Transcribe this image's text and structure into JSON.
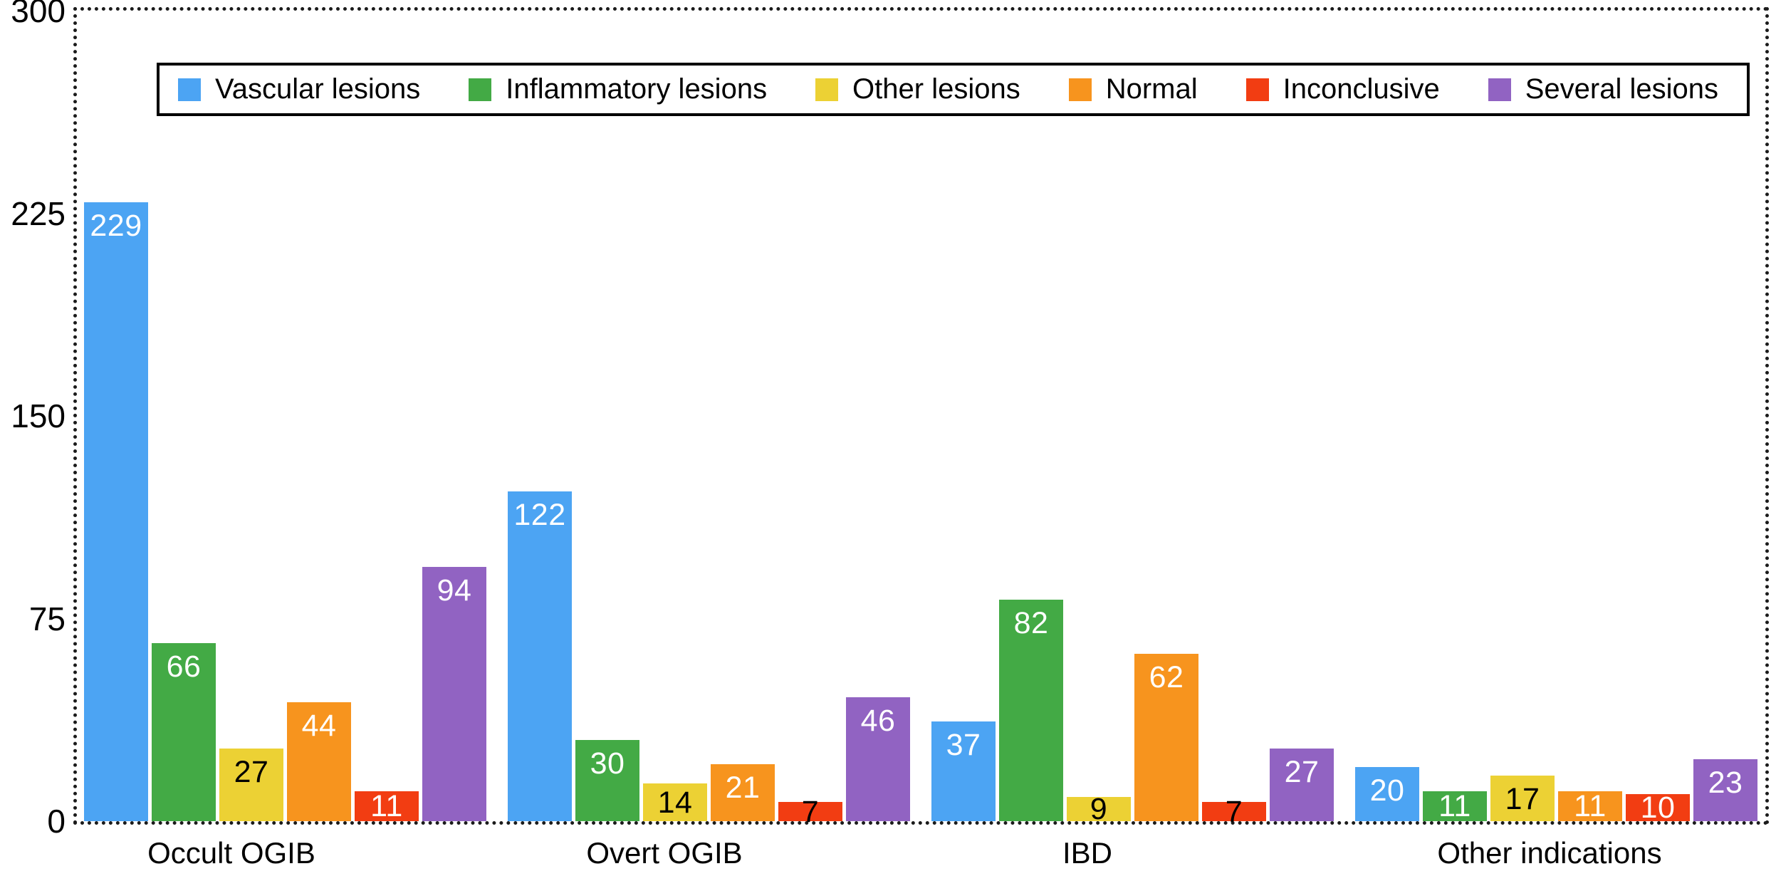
{
  "figure": {
    "background": "#ffffff",
    "frame_style": "dotted-black"
  },
  "chart_data": {
    "type": "bar",
    "title": "",
    "xlabel": "",
    "ylabel": "",
    "categories": [
      "Occult OGIB",
      "Overt OGIB",
      "IBD",
      "Other indications"
    ],
    "series": [
      {
        "name": "Vascular lesions",
        "color": "#4CA4F3",
        "values": [
          229,
          122,
          37,
          20
        ]
      },
      {
        "name": "Inflammatory lesions",
        "color": "#43AA45",
        "values": [
          66,
          30,
          82,
          11
        ]
      },
      {
        "name": "Other lesions",
        "color": "#ECD134",
        "values": [
          27,
          14,
          9,
          17
        ]
      },
      {
        "name": "Normal",
        "color": "#F7941E",
        "values": [
          44,
          21,
          62,
          11
        ]
      },
      {
        "name": "Inconclusive",
        "color": "#F23D12",
        "values": [
          11,
          7,
          7,
          10
        ]
      },
      {
        "name": "Several lesions",
        "color": "#9163C2",
        "values": [
          94,
          46,
          27,
          23
        ]
      }
    ],
    "ylim": [
      0,
      300
    ],
    "yticks": [
      300,
      225,
      150,
      75,
      0
    ],
    "grid": false,
    "legend_position": "top-inside",
    "bar_value_labels": true,
    "bar_label_colors": {
      "default": "#ffffff",
      "Other lesions": "#000000",
      "small_red_bars": "#000000"
    }
  }
}
